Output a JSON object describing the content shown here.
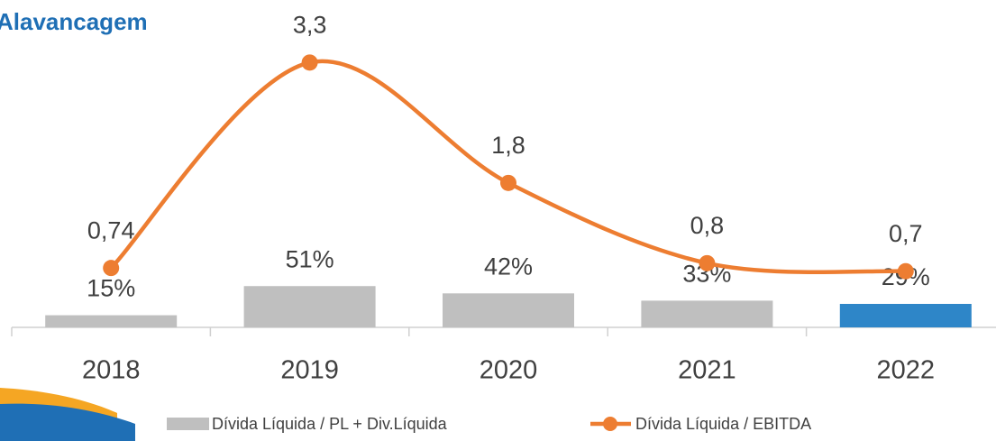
{
  "chart_data": {
    "type": "bar-line",
    "title": "Alavancagem",
    "categories": [
      "2018",
      "2019",
      "2020",
      "2021",
      "2022"
    ],
    "series": [
      {
        "name": "Dívida Líquida / PL + Div.Líquida",
        "type": "bar",
        "color": "#bfbfbf",
        "colors": [
          "#bfbfbf",
          "#bfbfbf",
          "#bfbfbf",
          "#bfbfbf",
          "#2e86c8"
        ],
        "values": [
          15,
          51,
          42,
          33,
          29
        ],
        "value_labels": [
          "15%",
          "51%",
          "42%",
          "33%",
          "29%"
        ]
      },
      {
        "name": "Dívida Líquida / EBITDA",
        "type": "line",
        "axis": "y2",
        "color": "#ed7d31",
        "values": [
          0.74,
          3.3,
          1.8,
          0.8,
          0.7
        ],
        "value_labels": [
          "0,74",
          "3,3",
          "1,8",
          "0,8",
          "0,7"
        ]
      }
    ],
    "ylim": [
      0,
      360
    ],
    "y2lim": [
      0,
      3.63
    ],
    "legend": "bottom"
  }
}
